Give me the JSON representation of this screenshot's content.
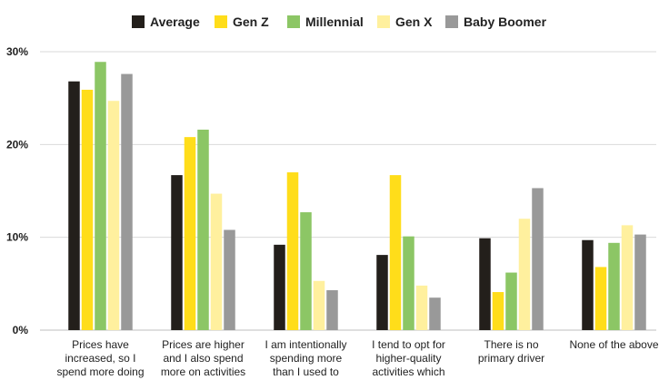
{
  "chart_data": {
    "type": "bar",
    "title": "",
    "xlabel": "",
    "ylabel": "",
    "ylim": [
      0,
      30
    ],
    "yticks": [
      {
        "value": 0,
        "label": "0%"
      },
      {
        "value": 10,
        "label": "10%"
      },
      {
        "value": 20,
        "label": "20%"
      },
      {
        "value": 30,
        "label": "30%"
      }
    ],
    "grid": true,
    "legend_position": "top-center",
    "categories": [
      [
        "Prices have",
        "increased, so I",
        "spend more doing"
      ],
      [
        "Prices are higher",
        "and I also spend",
        "more on activities"
      ],
      [
        "I am intentionally",
        "spending more",
        "than I used to"
      ],
      [
        "I tend to opt for",
        "higher-quality",
        "activities which"
      ],
      [
        "There is no",
        "primary driver"
      ],
      [
        "None of the above"
      ]
    ],
    "series": [
      {
        "name": "Average",
        "color": "#231f1b",
        "values": [
          26.8,
          16.7,
          9.2,
          8.1,
          9.9,
          9.7
        ]
      },
      {
        "name": "Gen Z",
        "color": "#ffdd1a",
        "values": [
          25.9,
          20.8,
          17.0,
          16.7,
          4.1,
          6.8
        ]
      },
      {
        "name": "Millennial",
        "color": "#8cc665",
        "values": [
          28.9,
          21.6,
          12.7,
          10.1,
          6.2,
          9.4
        ]
      },
      {
        "name": "Gen X",
        "color": "#fff09e",
        "values": [
          24.7,
          14.7,
          5.3,
          4.8,
          12.0,
          11.3
        ]
      },
      {
        "name": "Baby Boomer",
        "color": "#999999",
        "values": [
          27.6,
          10.8,
          4.3,
          3.5,
          15.3,
          10.3
        ]
      }
    ]
  }
}
